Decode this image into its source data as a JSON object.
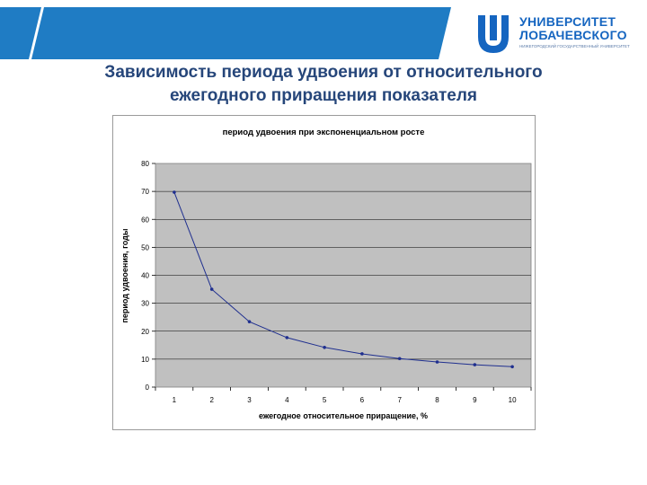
{
  "slide": {
    "title_line1": "Зависимость периода удвоения от относительного",
    "title_line2": "ежегодного приращения показателя"
  },
  "logo": {
    "line1": "УНИВЕРСИТЕТ",
    "line2": "ЛОБАЧЕВСКОГО",
    "line3": "НИЖЕГОРОДСКИЙ ГОСУДАРСТВЕННЫЙ УНИВЕРСИТЕТ"
  },
  "colors": {
    "banner": "#1f7cc4",
    "banner_dark": "#1565a8",
    "plot_bg": "#c0c0c0",
    "series": "#1f2f8f",
    "title_text": "#26467a"
  },
  "chart_data": {
    "type": "line",
    "title": "период удвоения при экспоненциальном росте",
    "xlabel": "ежегодное относительное приращение, %",
    "ylabel": "период удвоения, годы",
    "categories": [
      "1",
      "2",
      "3",
      "4",
      "5",
      "6",
      "7",
      "8",
      "9",
      "10"
    ],
    "x": [
      1,
      2,
      3,
      4,
      5,
      6,
      7,
      8,
      9,
      10
    ],
    "series": [
      {
        "values": [
          69.7,
          35.0,
          23.4,
          17.7,
          14.2,
          11.9,
          10.2,
          9.0,
          8.0,
          7.3
        ]
      }
    ],
    "yticks": [
      "0",
      "10",
      "20",
      "30",
      "40",
      "50",
      "60",
      "70",
      "80"
    ],
    "ylim": [
      0,
      80
    ],
    "grid": "horizontal",
    "legend": "none"
  }
}
